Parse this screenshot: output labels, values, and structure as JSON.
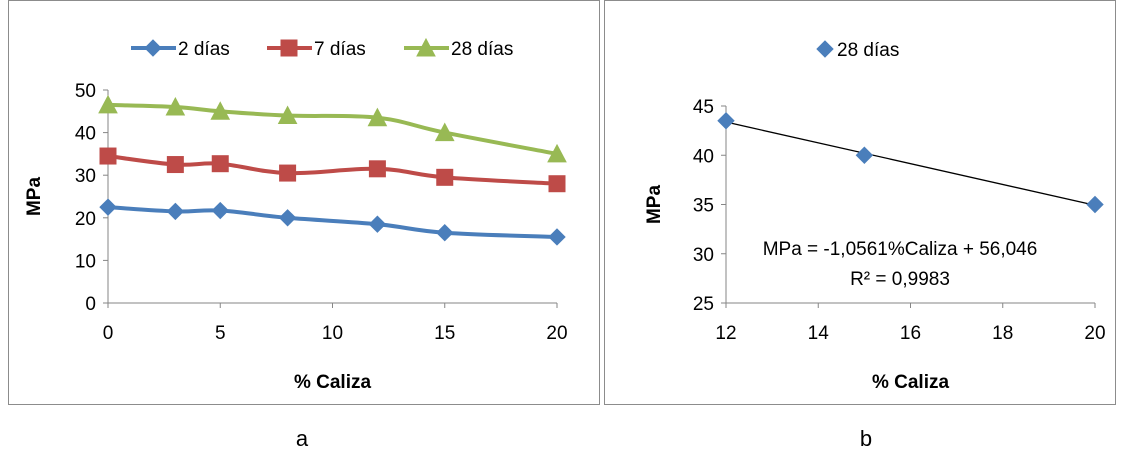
{
  "chart_data": [
    {
      "type": "line",
      "xlabel": "% Caliza",
      "ylabel": "MPa",
      "xlim": [
        0,
        20
      ],
      "ylim": [
        0,
        50
      ],
      "xticks": [
        0,
        5,
        10,
        15,
        20
      ],
      "yticks": [
        0,
        10,
        20,
        30,
        40,
        50
      ],
      "legend_position": "top",
      "series": [
        {
          "name": "2 días",
          "color": "#4a7ebb",
          "marker": "diamond",
          "x": [
            0,
            3,
            5,
            8,
            12,
            15,
            20
          ],
          "y": [
            22.5,
            21.5,
            21.7,
            20.0,
            18.5,
            16.5,
            15.5
          ]
        },
        {
          "name": "7 días",
          "color": "#be4b48",
          "marker": "square",
          "x": [
            0,
            3,
            5,
            8,
            12,
            15,
            20
          ],
          "y": [
            34.5,
            32.5,
            32.7,
            30.5,
            31.5,
            29.5,
            28.0
          ]
        },
        {
          "name": "28 días",
          "color": "#98b954",
          "marker": "triangle",
          "x": [
            0,
            3,
            5,
            8,
            12,
            15,
            20
          ],
          "y": [
            46.5,
            46.0,
            45.0,
            44.0,
            43.5,
            40.0,
            35.0
          ]
        }
      ]
    },
    {
      "type": "scatter",
      "xlabel": "% Caliza",
      "ylabel": "MPa",
      "xlim": [
        12,
        20
      ],
      "ylim": [
        25,
        45
      ],
      "xticks": [
        12,
        14,
        16,
        18,
        20
      ],
      "yticks": [
        25,
        30,
        35,
        40,
        45
      ],
      "legend_position": "top",
      "series": [
        {
          "name": "28 días",
          "color": "#4a7ebb",
          "marker": "diamond",
          "x": [
            12,
            15,
            20
          ],
          "y": [
            43.5,
            40.0,
            35.0
          ]
        }
      ],
      "trendline": {
        "slope": -1.0561,
        "intercept": 56.046,
        "color": "#000000"
      },
      "annotations": [
        "MPa = -1,0561%Caliza + 56,046",
        "R² = 0,9983"
      ]
    }
  ],
  "captions": {
    "a": "a",
    "b": "b"
  }
}
